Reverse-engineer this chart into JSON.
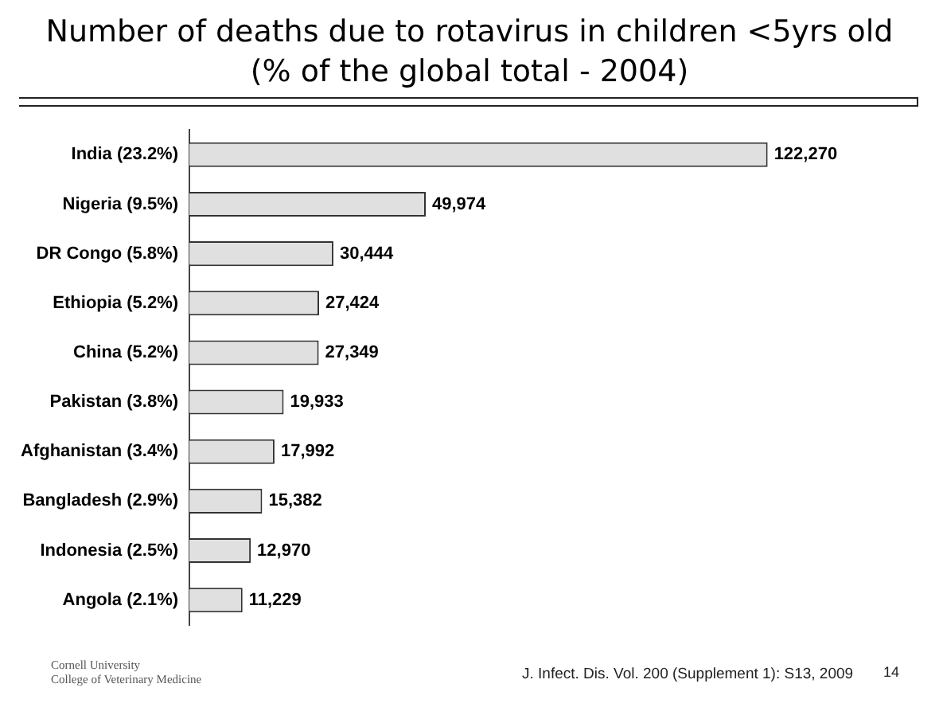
{
  "chart_data": {
    "type": "bar",
    "orientation": "horizontal",
    "title": "Number of deaths due to rotavirus in children <5yrs old\n(% of the global total - 2004)",
    "categories": [
      "India (23.2%)",
      "Nigeria (9.5%)",
      "DR Congo (5.8%)",
      "Ethiopia (5.2%)",
      "China (5.2%)",
      "Pakistan (3.8%)",
      "Afghanistan (3.4%)",
      "Bangladesh (2.9%)",
      "Indonesia (2.5%)",
      "Angola (2.1%)"
    ],
    "values": [
      122270,
      49974,
      30444,
      27424,
      27349,
      19933,
      17992,
      15382,
      12970,
      11229
    ],
    "value_labels": [
      "122,270",
      "49,974",
      "30,444",
      "27,424",
      "27,349",
      "19,933",
      "17,992",
      "15,382",
      "12,970",
      "11,229"
    ],
    "color": "#e0e0e0",
    "tick_labels": "y",
    "legend": false,
    "annotations": [
      "J. Infect. Dis. Vol. 200 (Supplement 1): S13, 2009",
      "14",
      "Cornell University\nCollege of Veterinary Medicine"
    ]
  }
}
